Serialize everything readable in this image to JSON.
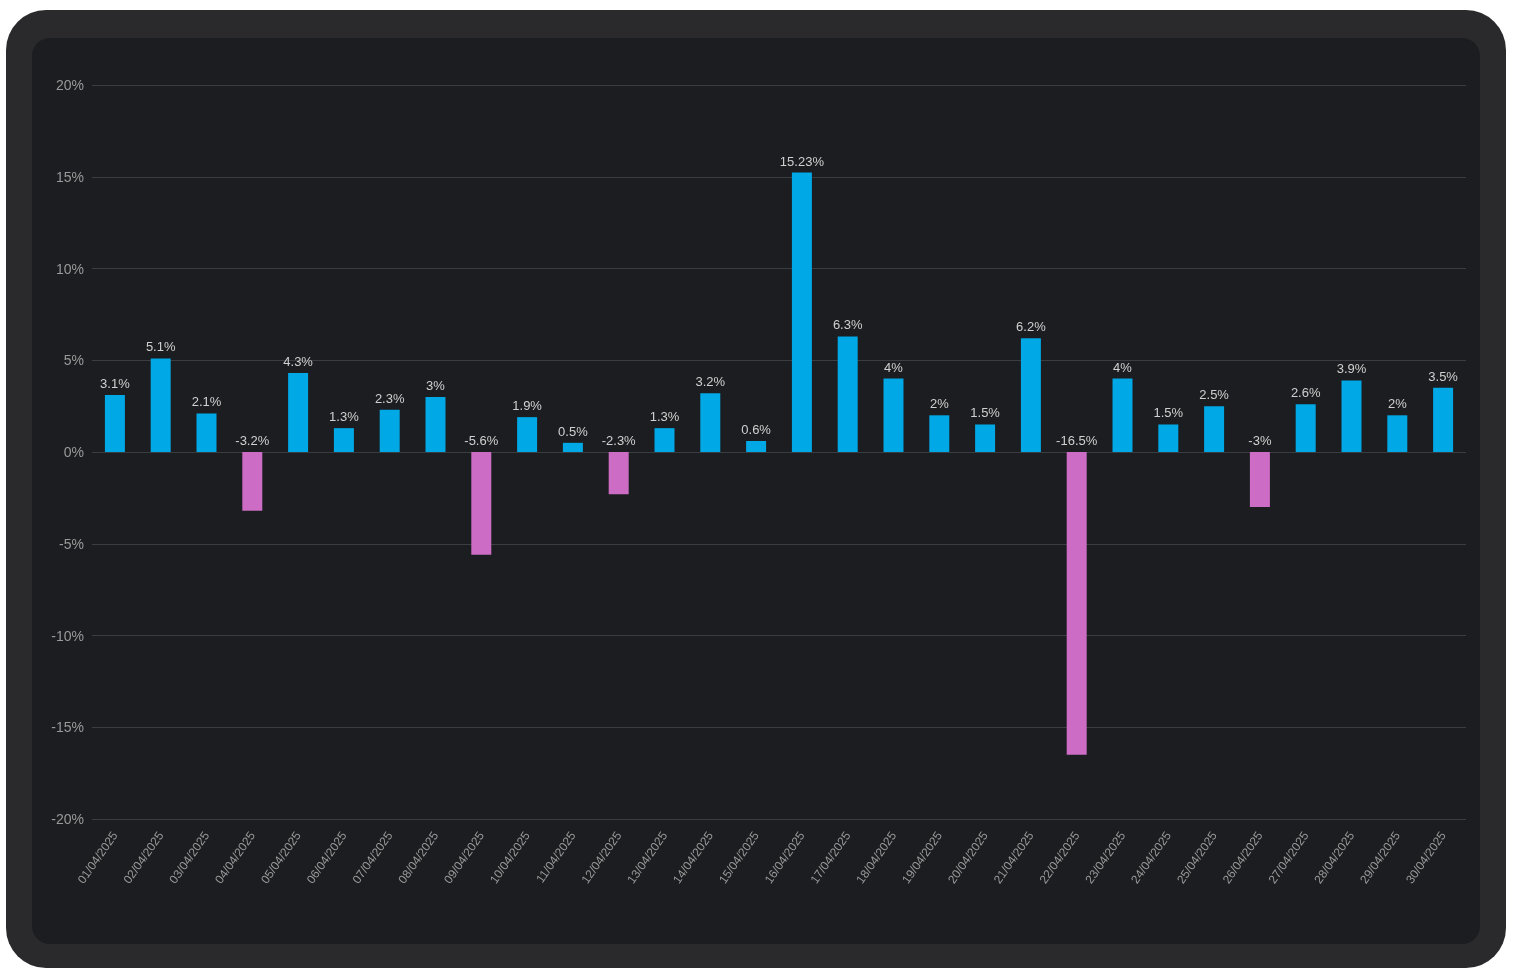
{
  "chart_data": {
    "type": "bar",
    "categories": [
      "01/04/2025",
      "02/04/2025",
      "03/04/2025",
      "04/04/2025",
      "05/04/2025",
      "06/04/2025",
      "07/04/2025",
      "08/04/2025",
      "09/04/2025",
      "10/04/2025",
      "11/04/2025",
      "12/04/2025",
      "13/04/2025",
      "14/04/2025",
      "15/04/2025",
      "16/04/2025",
      "17/04/2025",
      "18/04/2025",
      "19/04/2025",
      "20/04/2025",
      "21/04/2025",
      "22/04/2025",
      "23/04/2025",
      "24/04/2025",
      "25/04/2025",
      "26/04/2025",
      "27/04/2025",
      "28/04/2025",
      "29/04/2025",
      "30/04/2025"
    ],
    "values": [
      3.1,
      5.1,
      2.1,
      -3.2,
      4.3,
      1.3,
      2.3,
      3,
      -5.6,
      1.9,
      0.5,
      -2.3,
      1.3,
      3.2,
      0.6,
      15.23,
      6.3,
      4,
      2,
      1.5,
      6.2,
      -16.5,
      4,
      1.5,
      2.5,
      -3,
      2.6,
      3.9,
      2,
      3.5
    ],
    "colors": [
      "#00a8e6",
      "#00a8e6",
      "#00a8e6",
      "#cc6cc4",
      "#00a8e6",
      "#00a8e6",
      "#00a8e6",
      "#00a8e6",
      "#cc6cc4",
      "#00a8e6",
      "#00a8e6",
      "#cc6cc4",
      "#00a8e6",
      "#00a8e6",
      "#00a8e6",
      "#00a8e6",
      "#00a8e6",
      "#00a8e6",
      "#00a8e6",
      "#00a8e6",
      "#00a8e6",
      "#cc6cc4",
      "#00a8e6",
      "#00a8e6",
      "#00a8e6",
      "#cc6cc4",
      "#00a8e6",
      "#00a8e6",
      "#00a8e6",
      "#00a8e6"
    ],
    "value_labels": [
      "3.1%",
      "5.1%",
      "2.1%",
      "-3.2%",
      "4.3%",
      "1.3%",
      "2.3%",
      "3%",
      "-5.6%",
      "1.9%",
      "0.5%",
      "-2.3%",
      "1.3%",
      "3.2%",
      "0.6%",
      "15.23%",
      "6.3%",
      "4%",
      "2%",
      "1.5%",
      "6.2%",
      "-16.5%",
      "4%",
      "1.5%",
      "2.5%",
      "-3%",
      "2.6%",
      "3.9%",
      "2%",
      "3.5%"
    ],
    "ylim": [
      -20,
      20
    ],
    "yticks": [
      {
        "value": -20,
        "label": "-20%"
      },
      {
        "value": -15,
        "label": "-15%"
      },
      {
        "value": -10,
        "label": "-10%"
      },
      {
        "value": -5,
        "label": "-5%"
      },
      {
        "value": 0,
        "label": "0%"
      },
      {
        "value": 5,
        "label": "5%"
      },
      {
        "value": 10,
        "label": "10%"
      },
      {
        "value": 15,
        "label": "15%"
      },
      {
        "value": 20,
        "label": "20%"
      }
    ],
    "grid": "y"
  }
}
